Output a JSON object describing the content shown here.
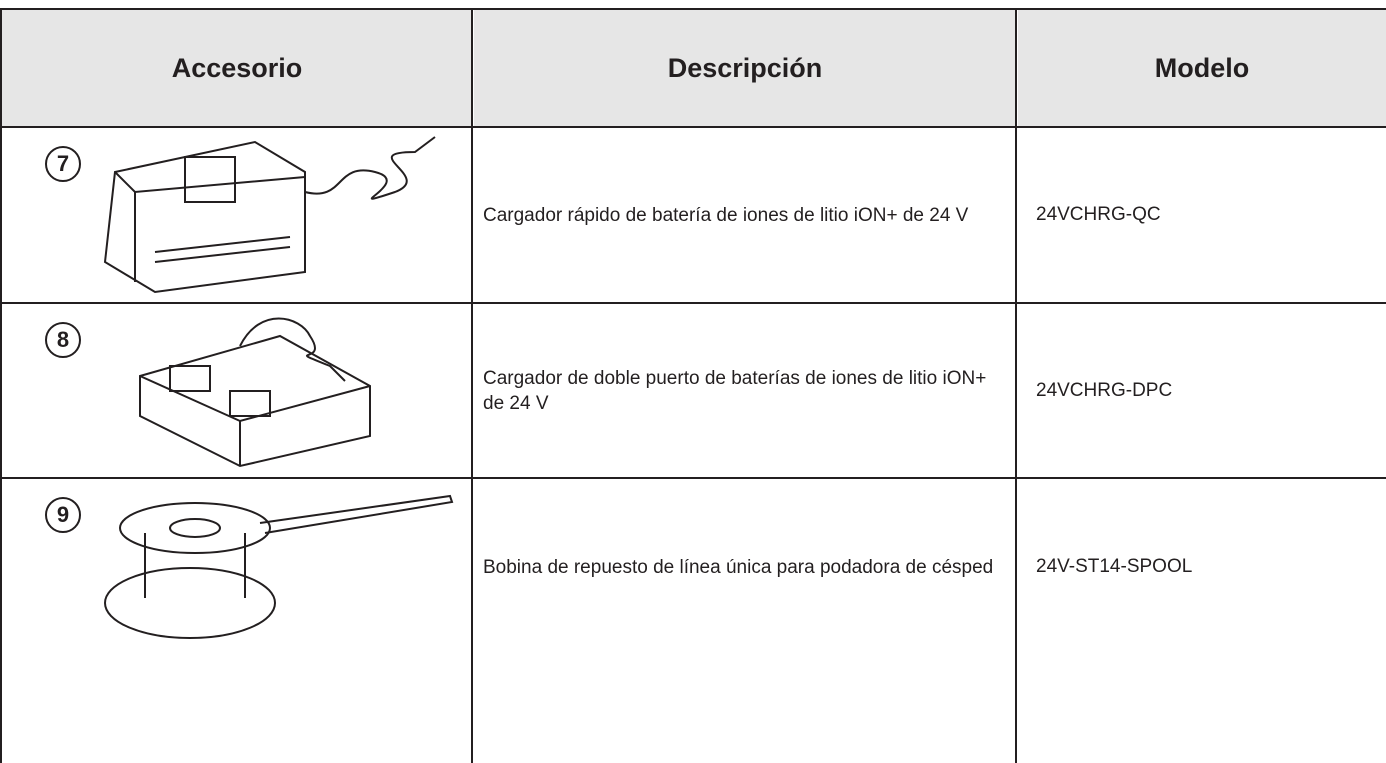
{
  "table": {
    "header": [
      "Accesorio",
      "Descripción",
      "Modelo"
    ],
    "rows": [
      {
        "number": "7",
        "description": "Cargador rápido de batería de iones de litio iON+ de 24 V",
        "model": "24VCHRG-QC"
      },
      {
        "number": "8",
        "description": "Cargador de doble puerto de baterías de iones de litio iON+ de 24 V",
        "model": "24VCHRG-DPC"
      },
      {
        "number": "9",
        "description": "Bobina de repuesto de línea única para podadora de césped",
        "model": "24V-ST14-SPOOL"
      }
    ]
  }
}
